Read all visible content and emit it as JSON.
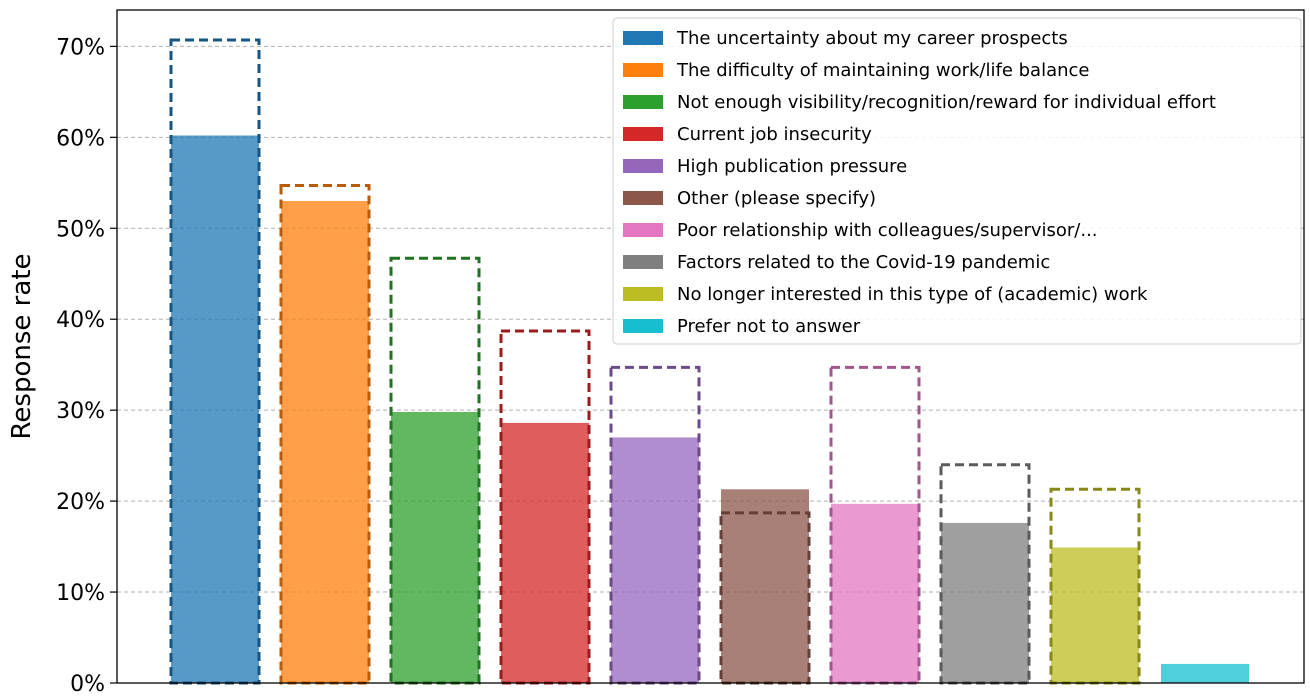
{
  "chart_data": {
    "type": "bar",
    "ylabel": "Response rate",
    "ylim": [
      0,
      74
    ],
    "yticks": [
      0,
      10,
      20,
      30,
      40,
      50,
      60,
      70
    ],
    "ytick_labels": [
      "0%",
      "10%",
      "20%",
      "30%",
      "40%",
      "50%",
      "60%",
      "70%"
    ],
    "grid": "horizontal dashed",
    "legend_position": "top-right",
    "categories": [
      "The uncertainty about my career prospects",
      "The difficulty of maintaining work/life balance",
      "Not enough visibility/recognition/reward for individual effort",
      "Current job insecurity",
      "High publication pressure",
      "Other (please specify)",
      "Poor relationship with colleagues/supervisor/...",
      "Factors related to the Covid-19 pandemic",
      "No longer interested in this type of (academic) work",
      "Prefer not to answer"
    ],
    "series": [
      {
        "values": [
          60.2,
          53.0,
          29.8,
          28.6,
          27.0,
          21.3,
          19.7,
          17.6,
          14.9,
          2.1
        ]
      },
      {
        "values": [
          70.7,
          54.7,
          46.7,
          38.7,
          34.7,
          18.7,
          34.7,
          24.0,
          21.3,
          null
        ]
      }
    ],
    "colors": [
      "#1f77b4",
      "#ff7f0e",
      "#2ca02c",
      "#d62728",
      "#9467bd",
      "#8c564b",
      "#e377c2",
      "#7f7f7f",
      "#bcbd22",
      "#17becf"
    ]
  }
}
